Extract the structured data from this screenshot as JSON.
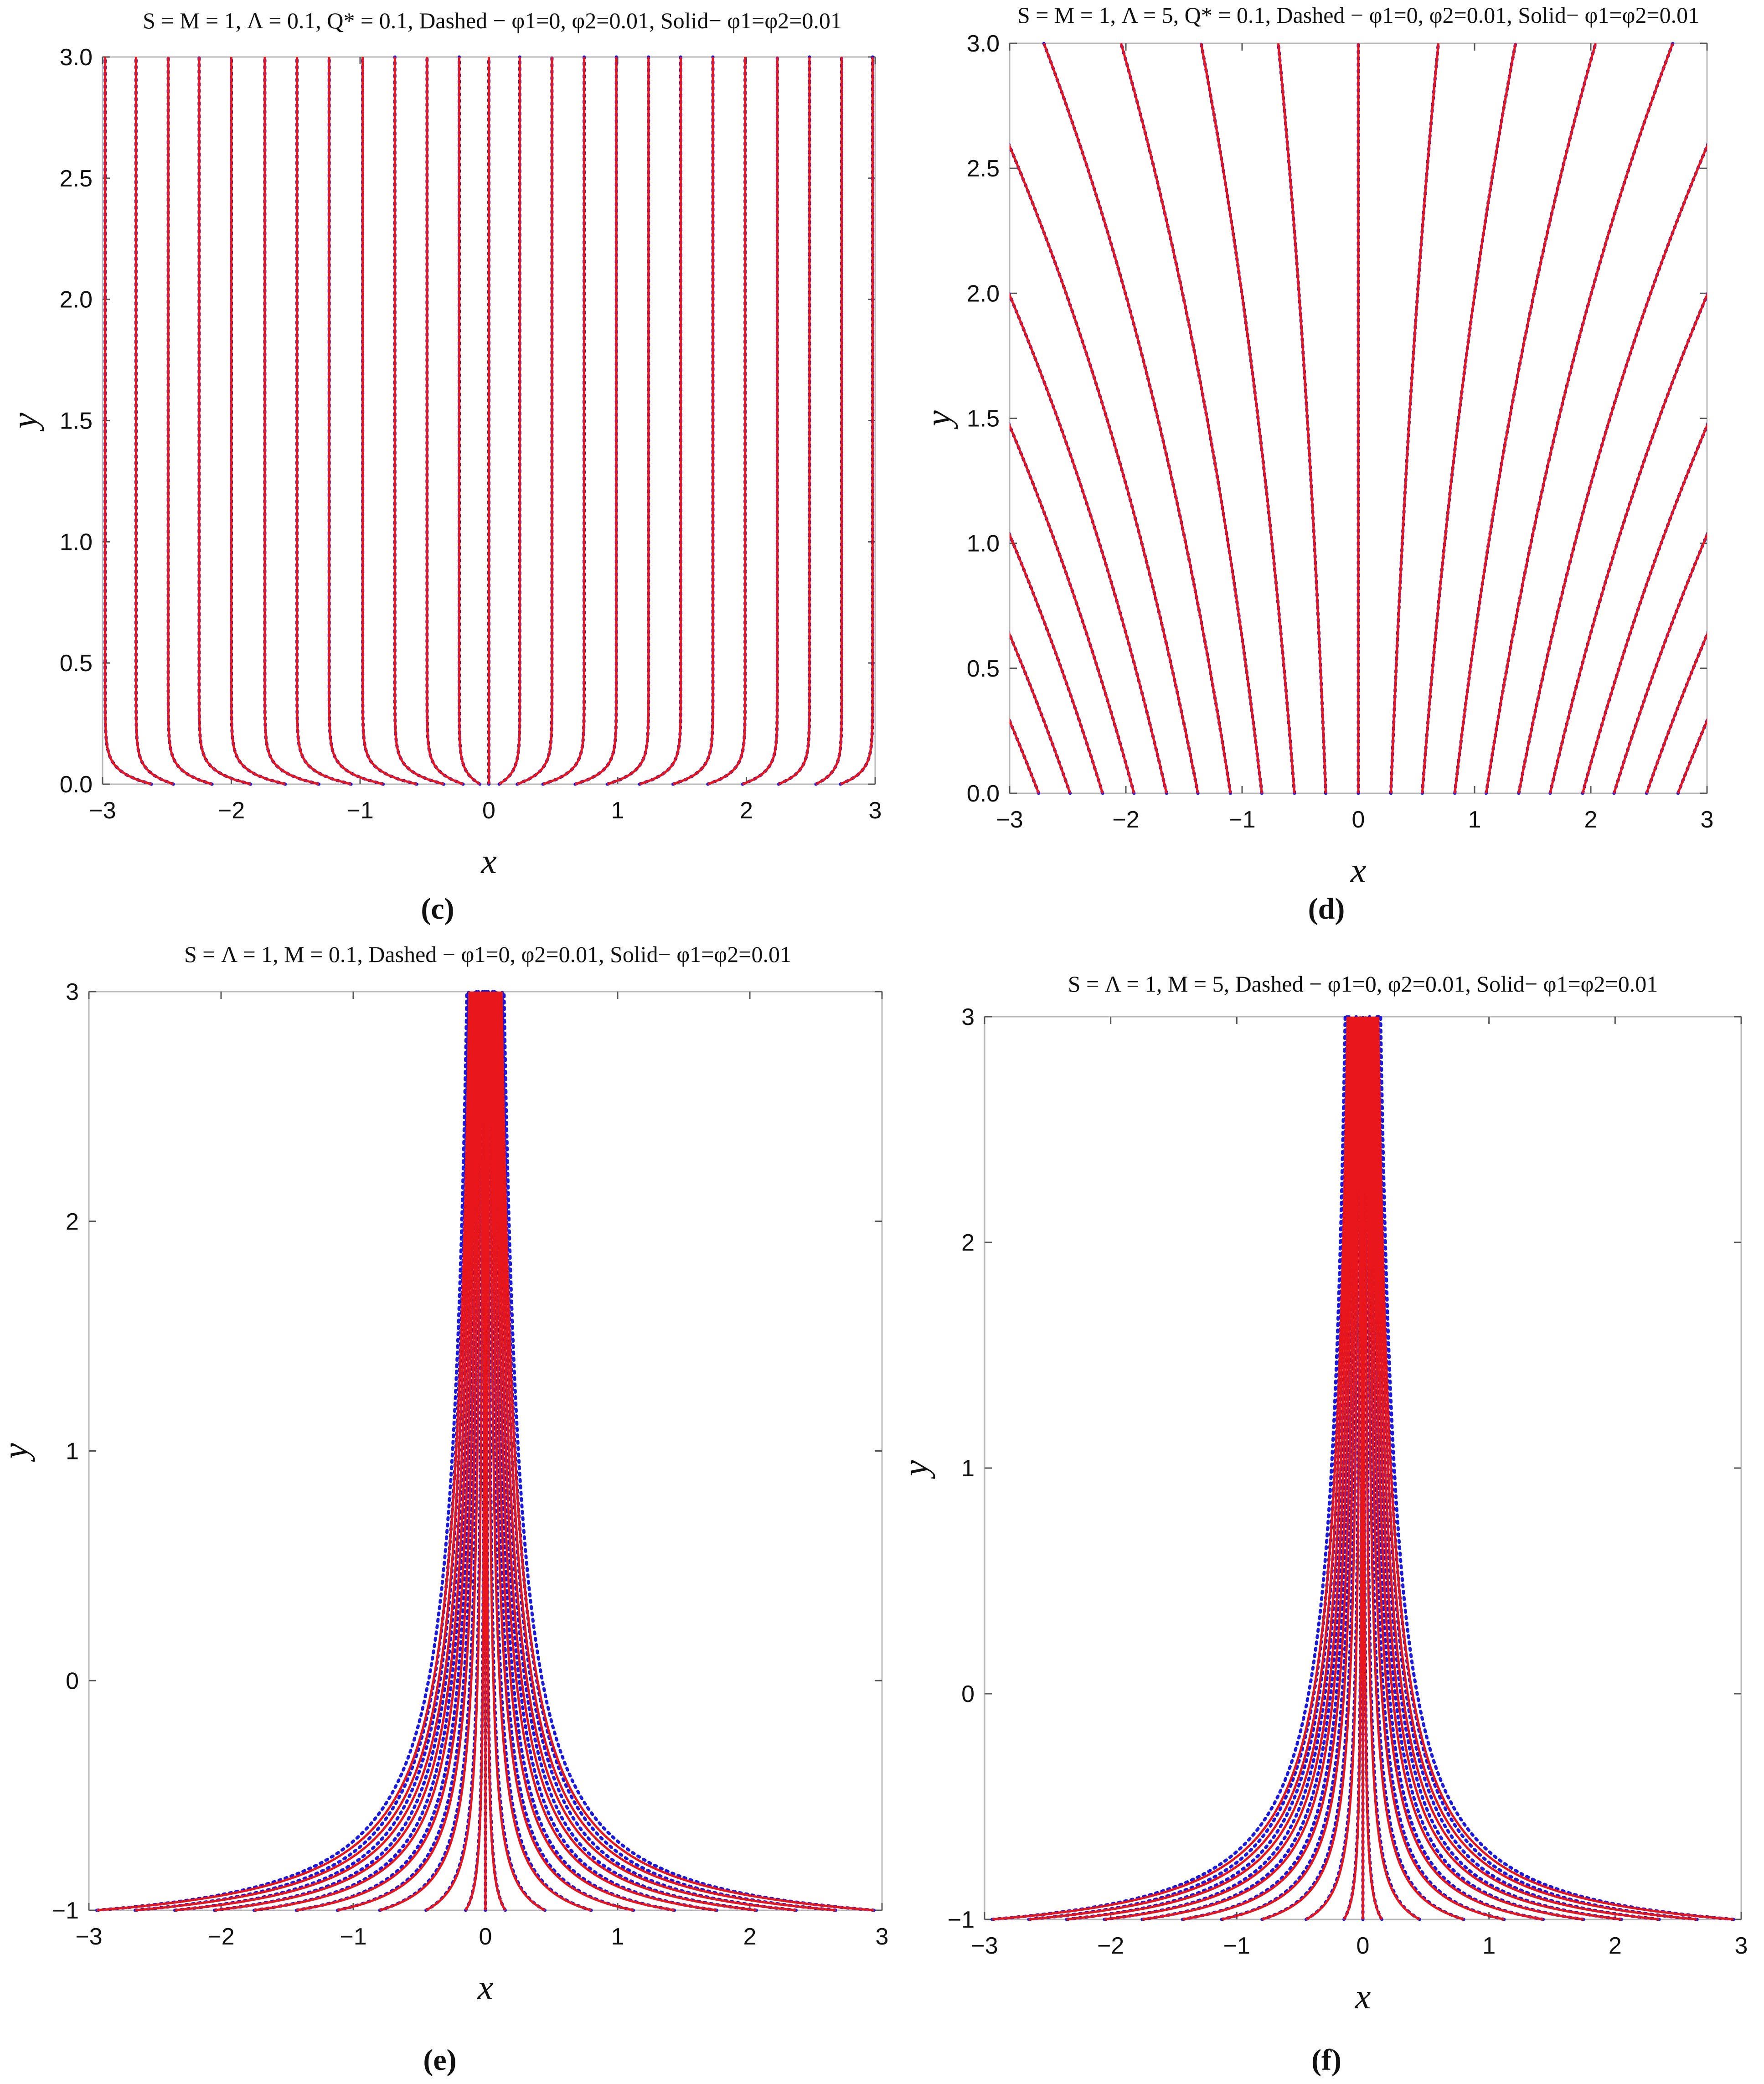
{
  "figure": {
    "colors": {
      "solid": "#e8161b",
      "dashed": "#1a1adf",
      "frame": "#b8b8b8",
      "background": "#ffffff"
    },
    "line_styles": {
      "solid_curve": "solid red",
      "dashed_curve": "dotted blue"
    }
  },
  "chart_data": [
    {
      "panel": "c",
      "caption": "(c)",
      "type": "line",
      "title": "S = M = 1, Λ = 0.1, Q* = 0.1, Dashed − φ1=0, φ2=0.01, Solid− φ1=φ2=0.01",
      "xlabel": "x",
      "ylabel": "y",
      "xlim": [
        -3,
        3
      ],
      "ylim": [
        0,
        3
      ],
      "xticks": [
        "−3",
        "−2",
        "−1",
        "0",
        "1",
        "2",
        "3"
      ],
      "yticks": [
        "0.0",
        "0.5",
        "1.0",
        "1.5",
        "2.0",
        "2.5",
        "3.0"
      ],
      "grid": false,
      "series": [
        {
          "name": "Dashed − φ1=0, φ2=0.01",
          "style": "dotted",
          "color": "#1a1adf",
          "curve_family": "near-vertical streamlines with a sharp outward kink close to y = 0",
          "x_at_top": [
            -2.98,
            -2.74,
            -2.49,
            -2.25,
            -2.0,
            -1.74,
            -1.49,
            -1.24,
            -0.98,
            -0.73,
            -0.48,
            -0.23,
            0.0,
            0.24,
            0.49,
            0.74,
            0.99,
            1.24,
            1.49,
            1.74,
            1.99,
            2.24,
            2.49,
            2.74,
            2.98
          ],
          "x_at_bottom": [
            -2.62,
            -2.45,
            -2.15,
            -1.85,
            -1.58,
            -1.32,
            -1.07,
            -0.82,
            -0.56,
            -0.35,
            -0.2,
            -0.07,
            0.0,
            0.08,
            0.22,
            0.42,
            0.67,
            0.92,
            1.17,
            1.43,
            1.7,
            1.97,
            2.25,
            2.54,
            2.73
          ]
        },
        {
          "name": "Solid− φ1=φ2=0.01",
          "style": "solid",
          "color": "#e8161b",
          "curve_family": "near-vertical streamlines with a sharp outward kink close to y = 0",
          "x_at_top": [
            -2.98,
            -2.74,
            -2.49,
            -2.25,
            -2.0,
            -1.74,
            -1.49,
            -1.24,
            -0.98,
            -0.73,
            -0.48,
            -0.23,
            0.0,
            0.24,
            0.49,
            0.74,
            0.99,
            1.24,
            1.49,
            1.74,
            1.99,
            2.24,
            2.49,
            2.74,
            2.98
          ],
          "x_at_bottom": [
            -2.62,
            -2.45,
            -2.15,
            -1.85,
            -1.58,
            -1.32,
            -1.07,
            -0.82,
            -0.56,
            -0.35,
            -0.2,
            -0.07,
            0.0,
            0.08,
            0.22,
            0.42,
            0.67,
            0.92,
            1.17,
            1.43,
            1.7,
            1.97,
            2.25,
            2.54,
            2.73
          ]
        }
      ]
    },
    {
      "panel": "d",
      "caption": "(d)",
      "type": "line",
      "title": "S = M = 1, Λ = 5, Q* = 0.1, Dashed − φ1=0, φ2=0.01, Solid− φ1=φ2=0.01",
      "xlabel": "x",
      "ylabel": "y",
      "xlim": [
        -3,
        3
      ],
      "ylim": [
        0,
        3
      ],
      "xticks": [
        "−3",
        "−2",
        "−1",
        "0",
        "1",
        "2",
        "3"
      ],
      "yticks": [
        "0.0",
        "0.5",
        "1.0",
        "1.5",
        "2.0",
        "2.5",
        "3.0"
      ],
      "grid": false,
      "series": [
        {
          "name": "Dashed − φ1=0, φ2=0.01",
          "style": "dotted",
          "color": "#1a1adf",
          "curve_family": "straight streamlines fanning out from y = 0, x·exp(−k·y) = const",
          "x_at_y0": [
            -2.75,
            -2.48,
            -2.2,
            -1.93,
            -1.65,
            -1.38,
            -1.1,
            -0.83,
            -0.55,
            -0.28,
            0.0,
            0.28,
            0.55,
            0.83,
            1.1,
            1.38,
            1.65,
            1.93,
            2.2,
            2.48,
            2.75
          ],
          "growth_rate_k": 0.3
        },
        {
          "name": "Solid− φ1=φ2=0.01",
          "style": "solid",
          "color": "#e8161b",
          "curve_family": "straight streamlines fanning out from y = 0, x·exp(−k·y) = const",
          "x_at_y0": [
            -2.75,
            -2.48,
            -2.2,
            -1.93,
            -1.65,
            -1.38,
            -1.1,
            -0.83,
            -0.55,
            -0.28,
            0.0,
            0.28,
            0.55,
            0.83,
            1.1,
            1.38,
            1.65,
            1.93,
            2.2,
            2.48,
            2.75
          ],
          "growth_rate_k": 0.3
        }
      ]
    },
    {
      "panel": "e",
      "caption": "(e)",
      "type": "line",
      "title": "S = Λ = 1, M = 0.1, Dashed − φ1=0, φ2=0.01, Solid− φ1=φ2=0.01",
      "xlabel": "x",
      "ylabel": "y",
      "xlim": [
        -3,
        3
      ],
      "ylim": [
        -1,
        3
      ],
      "xticks": [
        "−3",
        "−2",
        "−1",
        "0",
        "1",
        "2",
        "3"
      ],
      "yticks": [
        "−1",
        "0",
        "1",
        "2",
        "3"
      ],
      "grid": false,
      "series": [
        {
          "name": "Dashed − φ1=0, φ2=0.01",
          "style": "dotted",
          "color": "#1a1adf",
          "curve_family": "x·(y + 1.12)^p = const streamlines from y = −1",
          "x_at_ybottom": [
            -2.94,
            -2.65,
            -2.35,
            -2.05,
            -1.75,
            -1.43,
            -1.12,
            -0.8,
            -0.45,
            -0.15,
            0.0,
            0.15,
            0.45,
            0.8,
            1.12,
            1.43,
            1.75,
            2.05,
            2.35,
            2.65,
            2.94
          ],
          "exponent_p": 0.86
        },
        {
          "name": "Solid− φ1=φ2=0.01",
          "style": "solid",
          "color": "#e8161b",
          "curve_family": "x·(y + 1.12)^p = const streamlines from y = −1",
          "x_at_ybottom": [
            -2.94,
            -2.65,
            -2.35,
            -2.05,
            -1.75,
            -1.43,
            -1.12,
            -0.8,
            -0.45,
            -0.15,
            0.0,
            0.15,
            0.45,
            0.8,
            1.12,
            1.43,
            1.75,
            2.05,
            2.35,
            2.65,
            2.94
          ],
          "exponent_p": 0.9
        }
      ]
    },
    {
      "panel": "f",
      "caption": "(f)",
      "type": "line",
      "title": "S = Λ = 1, M = 5, Dashed − φ1=0, φ2=0.01, Solid− φ1=φ2=0.01",
      "xlabel": "x",
      "ylabel": "y",
      "xlim": [
        -3,
        3
      ],
      "ylim": [
        -1,
        3
      ],
      "xticks": [
        "−3",
        "−2",
        "−1",
        "0",
        "1",
        "2",
        "3"
      ],
      "yticks": [
        "−1",
        "0",
        "1",
        "2",
        "3"
      ],
      "grid": false,
      "series": [
        {
          "name": "Dashed − φ1=0, φ2=0.01",
          "style": "dotted",
          "color": "#1a1adf",
          "curve_family": "x·(y + 1.12)^p = const streamlines from y = −1",
          "x_at_ybottom": [
            -2.94,
            -2.65,
            -2.35,
            -2.05,
            -1.75,
            -1.43,
            -1.12,
            -0.8,
            -0.45,
            -0.15,
            0.0,
            0.15,
            0.45,
            0.8,
            1.12,
            1.43,
            1.75,
            2.05,
            2.35,
            2.65,
            2.94
          ],
          "exponent_p": 0.86
        },
        {
          "name": "Solid− φ1=φ2=0.01",
          "style": "solid",
          "color": "#e8161b",
          "curve_family": "x·(y + 1.12)^p = const streamlines from y = −1",
          "x_at_ybottom": [
            -2.94,
            -2.65,
            -2.35,
            -2.05,
            -1.75,
            -1.43,
            -1.12,
            -0.8,
            -0.45,
            -0.15,
            0.0,
            0.15,
            0.45,
            0.8,
            1.12,
            1.43,
            1.75,
            2.05,
            2.35,
            2.65,
            2.94
          ],
          "exponent_p": 0.9
        }
      ]
    }
  ]
}
